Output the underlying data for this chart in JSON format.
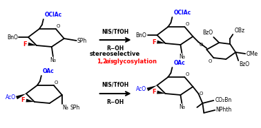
{
  "background": "#ffffff",
  "top_left_donor": {
    "OClAc": "OClAc",
    "BnO": "BnO",
    "F": "F",
    "SPh": "SPh",
    "N3": "N₃",
    "O": "O"
  },
  "bottom_left_donor": {
    "OAc": "OAc",
    "AcO": "AcO",
    "F": "F",
    "SPh": "SPh",
    "N3": "N₃",
    "O": "O"
  },
  "top_right_product": {
    "OClAc": "OClAc",
    "BnO": "BnO",
    "F": "F",
    "N3": "N₃",
    "O_ring1": "O",
    "O_link": "O",
    "OBz": "OBz",
    "BzO_1": "BzO",
    "BzO_2": "BzO",
    "OMe": "OMe",
    "O_ring2": "O"
  },
  "bottom_right_product": {
    "OAc": "OAc",
    "AcO": "AcO",
    "F": "F",
    "N3": "N₃",
    "O_ring": "O",
    "O_link": "O",
    "CO2Bn": "CO₂Bn",
    "NPhth": "NPhth"
  },
  "arrow_top_reagent1": "NIS/TfOH",
  "arrow_top_reagent2": "R−OH",
  "arrow_bot_reagent1": "NIS/TfOH",
  "arrow_bot_reagent2": "R−OH",
  "center1": "stereoselective",
  "center2a": "1,2-",
  "center2b": "cis",
  "center2c": " glycosylation"
}
